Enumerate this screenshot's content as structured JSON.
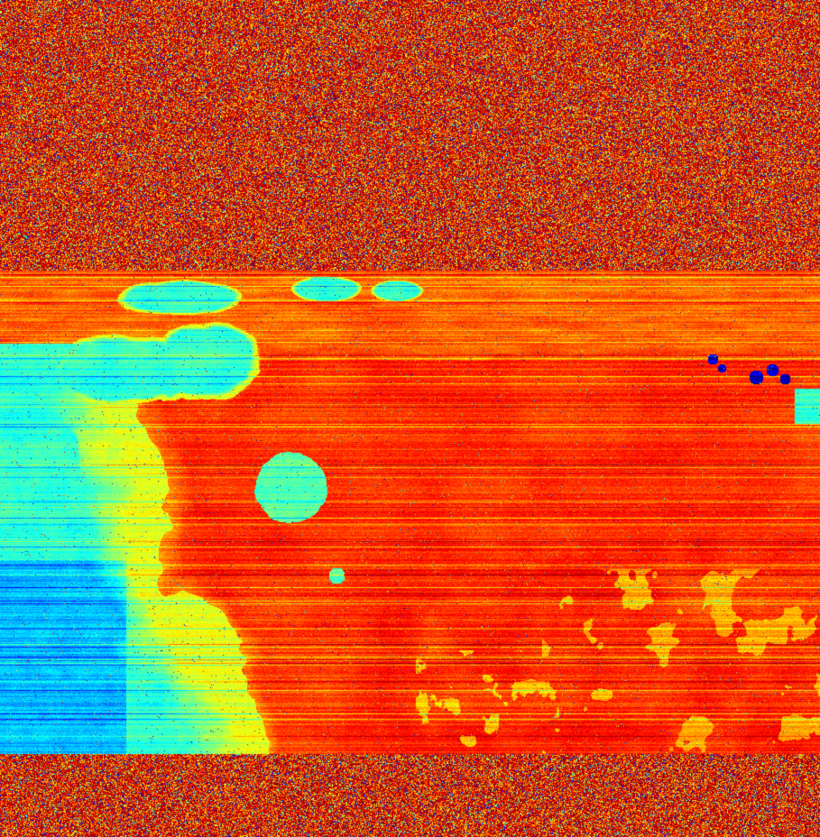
{
  "image": {
    "kind": "false-color planetary map",
    "palette": {
      "deep_blue": "#1f2fd0",
      "blue": "#2f7bff",
      "cyan": "#37e8f2",
      "green_teal": "#62e6a0",
      "yellow": "#ffe33a",
      "orange": "#ff8c1a",
      "orange_red": "#ff5a12",
      "red": "#e0220c"
    },
    "regions": [
      "noise band top",
      "streaky transition band",
      "cyan-blue western region",
      "orange-red central region",
      "circular cyan crater-like feature",
      "dark blue spots upper right",
      "noise band bottom"
    ]
  }
}
